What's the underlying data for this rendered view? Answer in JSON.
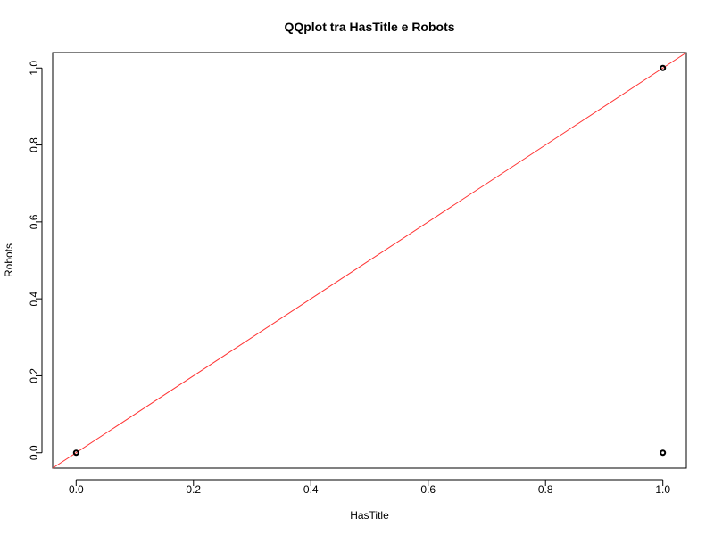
{
  "chart_data": {
    "type": "scatter",
    "title": "QQplot tra HasTitle e Robots",
    "xlabel": "HasTitle",
    "ylabel": "Robots",
    "xlim": [
      -0.04,
      1.04
    ],
    "ylim": [
      -0.04,
      1.04
    ],
    "x_ticks": [
      0.0,
      0.2,
      0.4,
      0.6,
      0.8,
      1.0
    ],
    "y_ticks": [
      0.0,
      0.2,
      0.4,
      0.6,
      0.8,
      1.0
    ],
    "x_tick_labels": [
      "0.0",
      "0.2",
      "0.4",
      "0.6",
      "0.8",
      "1.0"
    ],
    "y_tick_labels": [
      "0.0",
      "0.2",
      "0.4",
      "0.6",
      "0.8",
      "1.0"
    ],
    "grid": false,
    "series": [
      {
        "marker": "open-circle",
        "color": "#000000",
        "points": [
          {
            "x": 0.0,
            "y": 0.0
          },
          {
            "x": 1.0,
            "y": 1.0
          },
          {
            "x": 1.0,
            "y": 0.0
          }
        ]
      }
    ],
    "reference_line": {
      "intercept": 0,
      "slope": 1,
      "color": "#ff3333"
    }
  }
}
